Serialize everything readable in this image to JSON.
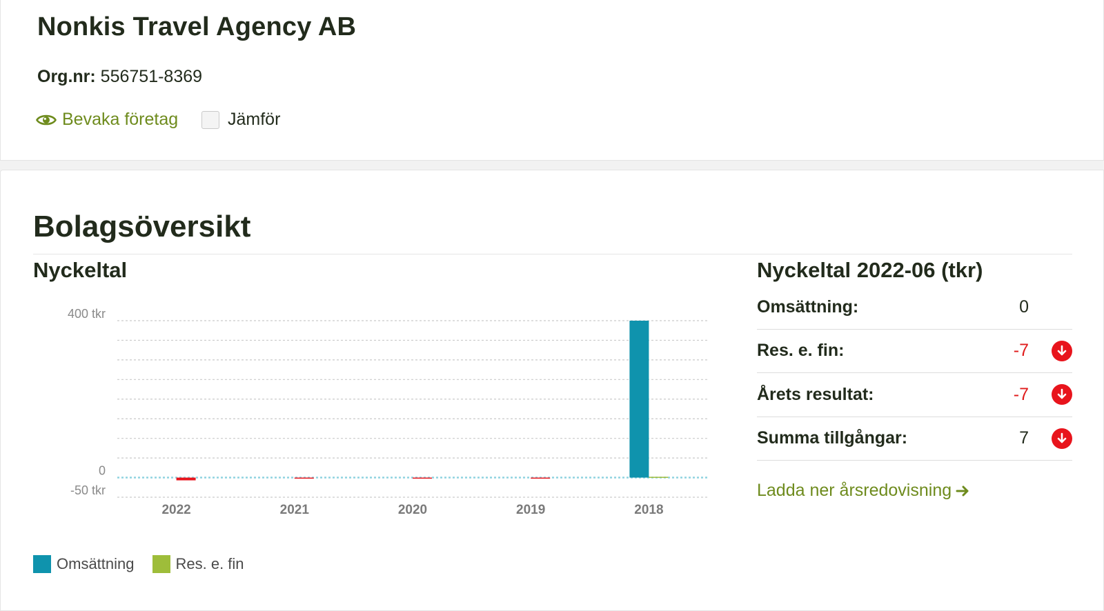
{
  "company": {
    "name": "Nonkis Travel Agency AB",
    "org_label": "Org.nr:",
    "org_number": "556751-8369",
    "watch_label": "Bevaka företag",
    "compare_label": "Jämför"
  },
  "overview": {
    "title": "Bolagsöversikt",
    "chart_title": "Nyckeltal"
  },
  "kpi": {
    "title": "Nyckeltal 2022-06 (tkr)",
    "rows": [
      {
        "label": "Omsättning:",
        "value": "0",
        "trend": "none"
      },
      {
        "label": "Res. e. fin:",
        "value": "-7",
        "trend": "down"
      },
      {
        "label": "Årets resultat:",
        "value": "-7",
        "trend": "down"
      },
      {
        "label": "Summa tillgångar:",
        "value": "7",
        "trend": "down"
      }
    ],
    "download_label": "Ladda ner årsredovisning"
  },
  "colors": {
    "accent_green": "#6e8b1d",
    "omsattning": "#0f93ad",
    "res_e_fin": "#9ebd3a",
    "negative": "#e8141c"
  },
  "icons": {
    "watch": "eye-icon",
    "download": "arrow-right-icon",
    "trend": "arrow-down-circle-icon"
  },
  "chart_data": {
    "type": "bar",
    "categories": [
      "2022",
      "2021",
      "2020",
      "2019",
      "2018"
    ],
    "series": [
      {
        "name": "Omsättning",
        "values": [
          0,
          0,
          0,
          0,
          400
        ]
      },
      {
        "name": "Res. e. fin",
        "values": [
          -7,
          -1,
          -1,
          -2,
          2
        ]
      }
    ],
    "ylim": [
      -50,
      400
    ],
    "ytick_labels": [
      "400 tkr",
      "0",
      "-50 tkr"
    ],
    "ytick_values": [
      400,
      0,
      -50
    ],
    "grid": true,
    "legend": "bottom-left"
  }
}
